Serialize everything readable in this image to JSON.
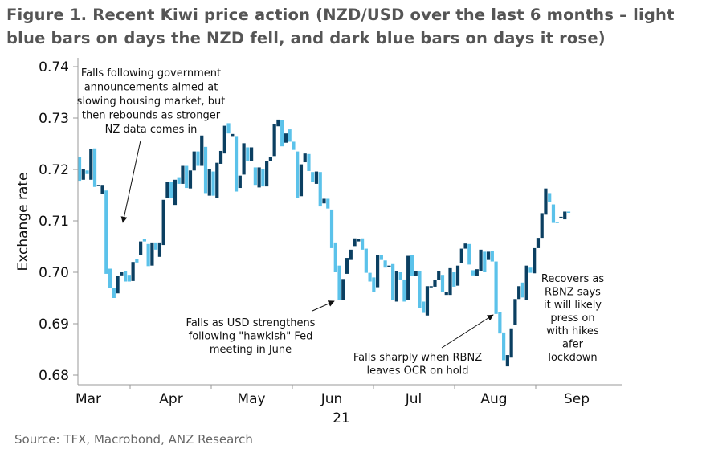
{
  "title": {
    "line1": "Figure 1. Recent Kiwi price action (NZD/USD over the last 6 months – light",
    "line2": "blue bars on days the NZD fell, and dark blue bars on days it rose)"
  },
  "source": "Source: TFX, Macrobond, ANZ Research",
  "chart_data": {
    "type": "bar",
    "subtype": "floating open-close bars",
    "ylabel": "Exchange rate",
    "xlabel": "",
    "ylim": [
      0.68,
      0.74
    ],
    "yticks": [
      "0.68",
      "0.69",
      "0.70",
      "0.71",
      "0.72",
      "0.73",
      "0.74"
    ],
    "xticks": [
      "Mar",
      "Apr",
      "May",
      "Jun",
      "Jul",
      "Aug",
      "Sep"
    ],
    "year_label": "21",
    "grid": false,
    "colors": {
      "fell": "#5BC2EA",
      "rose": "#0B3F61",
      "axis": "#999999"
    },
    "bars": [
      [
        0.7224,
        0.7178
      ],
      [
        0.718,
        0.7201
      ],
      [
        0.7198,
        0.7191
      ],
      [
        0.718,
        0.724
      ],
      [
        0.7241,
        0.7166
      ],
      [
        0.7168,
        0.717
      ],
      [
        0.7153,
        0.717
      ],
      [
        0.7159,
        0.6997
      ],
      [
        0.7007,
        0.6969
      ],
      [
        0.6969,
        0.695
      ],
      [
        0.6959,
        0.6993
      ],
      [
        0.6994,
        0.7
      ],
      [
        0.7003,
        0.6982
      ],
      [
        0.6995,
        0.6982
      ],
      [
        0.6983,
        0.702
      ],
      [
        0.7025,
        0.7019
      ],
      [
        0.7034,
        0.706
      ],
      [
        0.7065,
        0.706
      ],
      [
        0.7055,
        0.7012
      ],
      [
        0.7013,
        0.7058
      ],
      [
        0.7058,
        0.7044
      ],
      [
        0.703,
        0.7058
      ],
      [
        0.7053,
        0.7141
      ],
      [
        0.7145,
        0.7176
      ],
      [
        0.7176,
        0.7144
      ],
      [
        0.7131,
        0.718
      ],
      [
        0.7185,
        0.7172
      ],
      [
        0.7172,
        0.7207
      ],
      [
        0.7207,
        0.7164
      ],
      [
        0.7163,
        0.7198
      ],
      [
        0.7198,
        0.7235
      ],
      [
        0.7235,
        0.7207
      ],
      [
        0.7207,
        0.7266
      ],
      [
        0.7244,
        0.7154
      ],
      [
        0.7149,
        0.7201
      ],
      [
        0.7196,
        0.7149
      ],
      [
        0.7144,
        0.7213
      ],
      [
        0.7211,
        0.7236
      ],
      [
        0.7231,
        0.7285
      ],
      [
        0.729,
        0.727
      ],
      [
        0.7265,
        0.7269
      ],
      [
        0.7265,
        0.7157
      ],
      [
        0.7164,
        0.7188
      ],
      [
        0.719,
        0.7251
      ],
      [
        0.7243,
        0.7216
      ],
      [
        0.7216,
        0.7243
      ],
      [
        0.7204,
        0.717
      ],
      [
        0.7165,
        0.7204
      ],
      [
        0.7201,
        0.7167
      ],
      [
        0.7167,
        0.7216
      ],
      [
        0.7216,
        0.7224
      ],
      [
        0.7226,
        0.7289
      ],
      [
        0.7284,
        0.7297
      ],
      [
        0.7296,
        0.7245
      ],
      [
        0.7252,
        0.727
      ],
      [
        0.7278,
        0.7254
      ],
      [
        0.7254,
        0.7238
      ],
      [
        0.7235,
        0.7144
      ],
      [
        0.7148,
        0.721
      ],
      [
        0.7214,
        0.7231
      ],
      [
        0.723,
        0.7197
      ],
      [
        0.7195,
        0.7176
      ],
      [
        0.7172,
        0.7196
      ],
      [
        0.7195,
        0.7128
      ],
      [
        0.7134,
        0.7143
      ],
      [
        0.7143,
        0.7124
      ],
      [
        0.7122,
        0.7047
      ],
      [
        0.7058,
        0.7
      ],
      [
        0.7013,
        0.6946
      ],
      [
        0.6946,
        0.6987
      ],
      [
        0.6997,
        0.7028
      ],
      [
        0.7024,
        0.7044
      ],
      [
        0.7051,
        0.7066
      ],
      [
        0.706,
        0.7065
      ],
      [
        0.7066,
        0.7044
      ],
      [
        0.7046,
        0.6999
      ],
      [
        0.6999,
        0.6982
      ],
      [
        0.699,
        0.6962
      ],
      [
        0.6971,
        0.7033
      ],
      [
        0.7033,
        0.7024
      ],
      [
        0.7023,
        0.7009
      ],
      [
        0.7011,
        0.7013
      ],
      [
        0.7016,
        0.6946
      ],
      [
        0.6943,
        0.7003
      ],
      [
        0.7,
        0.6986
      ],
      [
        0.6986,
        0.6943
      ],
      [
        0.6946,
        0.7032
      ],
      [
        0.7034,
        0.6993
      ],
      [
        0.6993,
        0.7002
      ],
      [
        0.7002,
        0.693
      ],
      [
        0.6943,
        0.6921
      ],
      [
        0.6916,
        0.6973
      ],
      [
        0.6971,
        0.6973
      ],
      [
        0.6972,
        0.6985
      ],
      [
        0.6985,
        0.7003
      ],
      [
        0.6995,
        0.6961
      ],
      [
        0.6956,
        0.6961
      ],
      [
        0.6956,
        0.7008
      ],
      [
        0.7,
        0.6972
      ],
      [
        0.6974,
        0.7013
      ],
      [
        0.7018,
        0.7046
      ],
      [
        0.7046,
        0.7056
      ],
      [
        0.7055,
        0.7015
      ],
      [
        0.7004,
        0.6994
      ],
      [
        0.6993,
        0.7006
      ],
      [
        0.7003,
        0.7044
      ],
      [
        0.704,
        0.7
      ],
      [
        0.7024,
        0.704
      ],
      [
        0.7041,
        0.7021
      ],
      [
        0.7021,
        0.6919
      ],
      [
        0.6922,
        0.6881
      ],
      [
        0.6883,
        0.6829
      ],
      [
        0.6817,
        0.6839
      ],
      [
        0.6834,
        0.6891
      ],
      [
        0.6898,
        0.6948
      ],
      [
        0.6948,
        0.6973
      ],
      [
        0.698,
        0.6951
      ],
      [
        0.6946,
        0.7013
      ],
      [
        0.7009,
        0.6999
      ],
      [
        0.6998,
        0.7047
      ],
      [
        0.7047,
        0.7067
      ],
      [
        0.7067,
        0.7115
      ],
      [
        0.7112,
        0.7163
      ],
      [
        0.7154,
        0.7136
      ],
      [
        0.7132,
        0.7096
      ],
      [
        0.7098,
        0.7097
      ],
      [
        0.7105,
        0.7108
      ],
      [
        0.7103,
        0.7118
      ],
      [
        0.7118,
        0.7117
      ]
    ],
    "annotations": [
      {
        "lines": [
          "Falls following government",
          "announcements aimed at",
          "slowing housing market, but",
          "then rebounds as stronger",
          "NZ data comes in"
        ]
      },
      {
        "lines": [
          "Falls as USD strengthens",
          "following \"hawkish\" Fed",
          "meeting in June"
        ]
      },
      {
        "lines": [
          "Falls sharply when RBNZ",
          "leaves OCR on hold"
        ]
      },
      {
        "lines": [
          "Recovers as",
          "RBNZ says",
          "it will likely",
          "press on",
          "with hikes",
          "afer",
          "lockdown"
        ]
      }
    ]
  }
}
